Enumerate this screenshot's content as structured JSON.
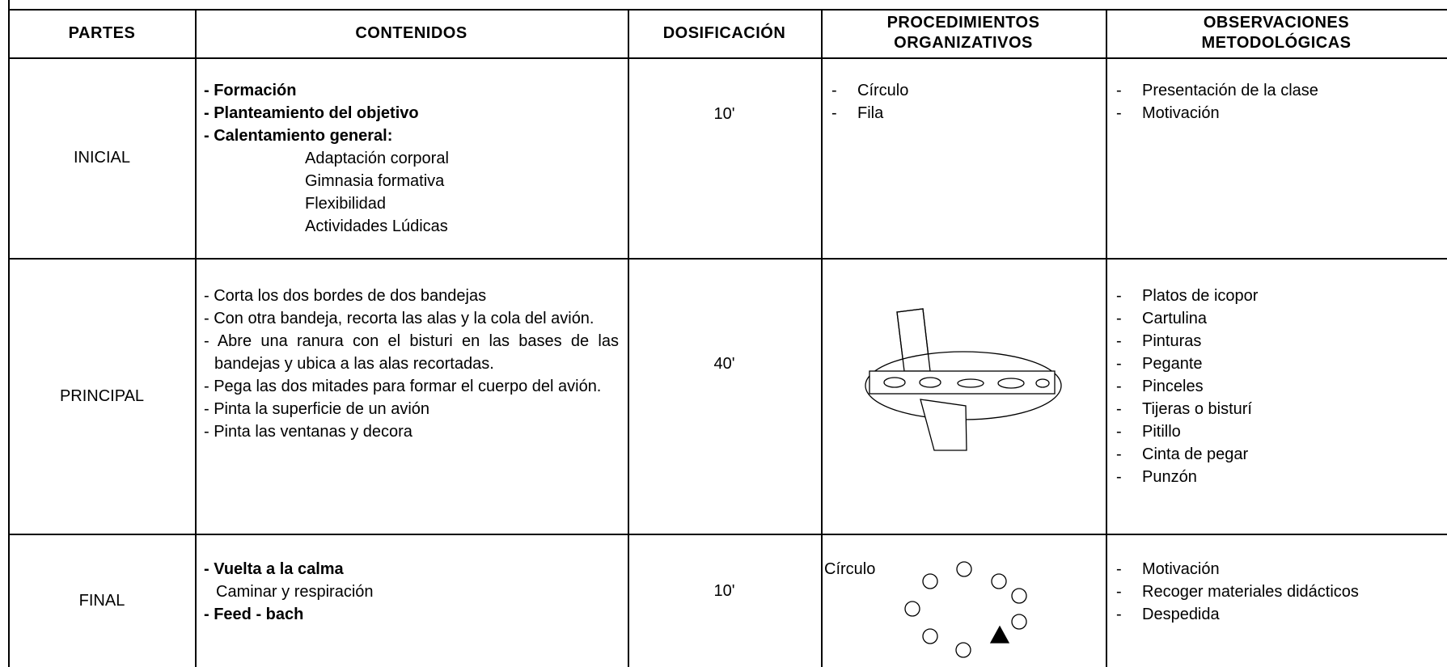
{
  "table": {
    "headers": [
      "PARTES",
      "CONTENIDOS",
      "DOSIFICACIÓN",
      "PROCEDIMIENTOS ORGANIZATIVOS",
      "OBSERVACIONES METODOLÓGICAS"
    ],
    "rows": [
      {
        "part": "INICIAL",
        "contents": [
          "- Formación",
          "- Planteamiento del objetivo",
          "- Calentamiento general:",
          "Adaptación corporal",
          "Gimnasia formativa",
          "Flexibilidad",
          "Actividades Lúdicas"
        ],
        "dosage": "10'",
        "procedures": [
          {
            "bullet": "-",
            "text": "Círculo"
          },
          {
            "bullet": "-",
            "text": "Fila"
          }
        ],
        "observations": [
          {
            "bullet": "-",
            "text": "Presentación de la clase"
          },
          {
            "bullet": "-",
            "text": "Motivación"
          }
        ]
      },
      {
        "part": "PRINCIPAL",
        "contents": [
          "- Corta los dos bordes de dos bandejas",
          "- Con otra bandeja, recorta las alas y la cola del avión.",
          "- Abre una ranura con el bisturi en las bases de las bandejas y ubica a las alas recortadas.",
          "- Pega las dos mitades para formar el cuerpo del avión.",
          "- Pinta la superficie de un avión",
          "- Pinta las ventanas y decora"
        ],
        "dosage": "40'",
        "procedures": [],
        "observations": [
          {
            "bullet": "-",
            "text": "Platos de icopor"
          },
          {
            "bullet": "-",
            "text": "Cartulina"
          },
          {
            "bullet": "-",
            "text": "Pinturas"
          },
          {
            "bullet": "-",
            "text": "Pegante"
          },
          {
            "bullet": "-",
            "text": "Pinceles"
          },
          {
            "bullet": "-",
            "text": "Tijeras o bisturí"
          },
          {
            "bullet": "-",
            "text": "Pitillo"
          },
          {
            "bullet": "-",
            "text": "Cinta de pegar"
          },
          {
            "bullet": "-",
            "text": "Punzón"
          }
        ]
      },
      {
        "part": "FINAL",
        "contents": [
          "- Vuelta a la calma",
          "Caminar y respiración",
          "- Feed - bach"
        ],
        "dosage": "10'",
        "procedures_label": "Círculo",
        "procedures": [],
        "observations": [
          {
            "bullet": "-",
            "text": "Motivación"
          },
          {
            "bullet": "-",
            "text": "Recoger materiales didácticos"
          },
          {
            "bullet": "-",
            "text": "Despedida"
          }
        ]
      }
    ]
  }
}
